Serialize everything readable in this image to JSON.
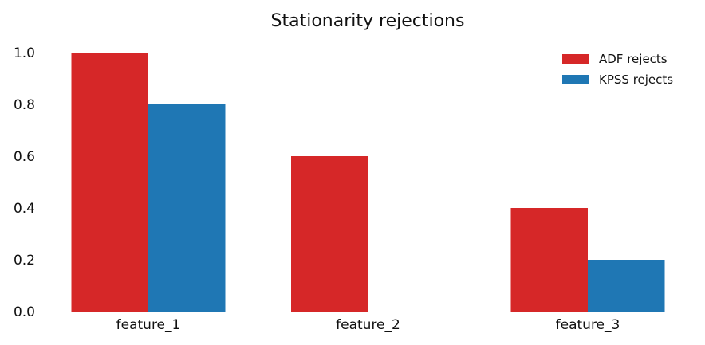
{
  "chart_data": {
    "type": "bar",
    "title": "Stationarity rejections",
    "xlabel": "",
    "ylabel": "",
    "categories": [
      "feature_1",
      "feature_2",
      "feature_3"
    ],
    "series": [
      {
        "name": "ADF rejects",
        "values": [
          1.0,
          0.6,
          0.4
        ],
        "color": "#d62728"
      },
      {
        "name": "KPSS rejects",
        "values": [
          0.8,
          0.0,
          0.2
        ],
        "color": "#1f77b4"
      }
    ],
    "ylim": [
      0,
      1.0
    ],
    "yticks": [
      "0.0",
      "0.2",
      "0.4",
      "0.6",
      "0.8",
      "1.0"
    ],
    "grid": false,
    "legend_position": "top-right"
  }
}
